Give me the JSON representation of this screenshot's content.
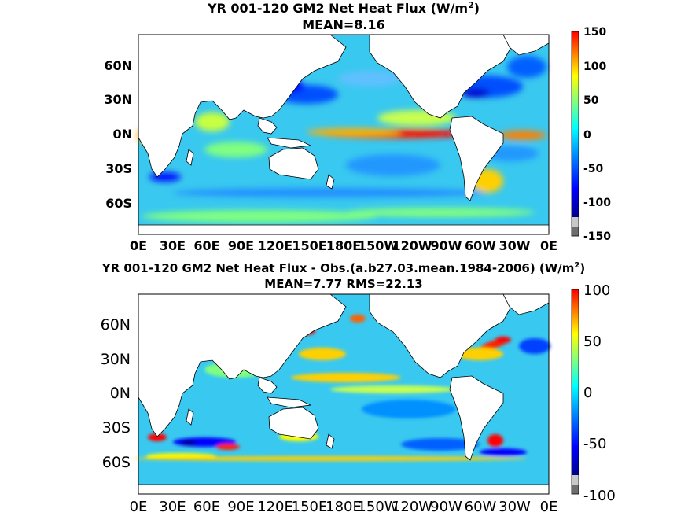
{
  "panels": [
    {
      "title_line1": "YR 001-120 GM2  Net Heat Flux (W/m",
      "title_unit_sup": "2",
      "title_unit_close": ")",
      "title_line2": "MEAN=8.16",
      "lat_ticks": [
        "60N",
        "30N",
        "0N",
        "30S",
        "60S"
      ],
      "lon_ticks": [
        "0E",
        "30E",
        "60E",
        "90E",
        "120E",
        "150E",
        "180E",
        "150W",
        "120W",
        "90W",
        "60W",
        "30W",
        "0E"
      ],
      "colorbar_ticks": [
        "150",
        "100",
        "50",
        "0",
        "-50",
        "-100",
        "-150"
      ],
      "colorbar_range": [
        -150,
        150
      ]
    },
    {
      "title_line1": "YR 001-120 GM2  Net Heat Flux - Obs.(a.b27.03.mean.1984-2006) (W/m",
      "title_unit_sup": "2",
      "title_unit_close": ")",
      "title_line2": "MEAN=7.77 RMS=22.13",
      "lat_ticks": [
        "60N",
        "30N",
        "0N",
        "30S",
        "60S"
      ],
      "lon_ticks": [
        "0E",
        "30E",
        "60E",
        "90E",
        "120E",
        "150E",
        "180E",
        "150W",
        "120W",
        "90W",
        "60W",
        "30W",
        "0E"
      ],
      "colorbar_ticks": [
        "100",
        "50",
        "0",
        "-50",
        "-100"
      ],
      "colorbar_range": [
        -100,
        100
      ]
    }
  ],
  "colors": {
    "ocean_base": "#39c8ef",
    "land": "#ffffff",
    "colormap": [
      "#6e6e6e",
      "#c8c8c8",
      "#00008f",
      "#0000ff",
      "#0080ff",
      "#00ffff",
      "#80ff80",
      "#ffff00",
      "#ff8000",
      "#ff0000"
    ]
  }
}
